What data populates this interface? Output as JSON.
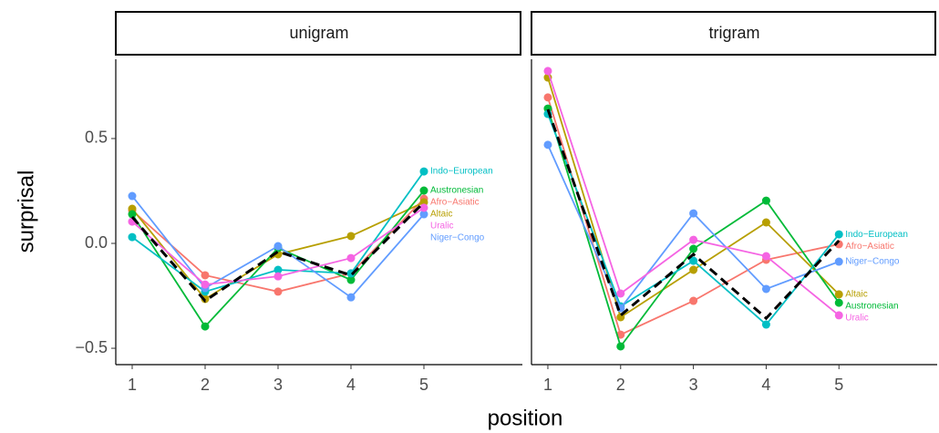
{
  "x_label": "position",
  "y_label": "surprisal",
  "chart_data": [
    {
      "type": "line",
      "title": "unigram",
      "x": [
        1,
        2,
        3,
        4,
        5
      ],
      "xlim": [
        0.775,
        6.35
      ],
      "ylim": [
        -0.578,
        0.878
      ],
      "xticks": [
        1,
        2,
        3,
        4,
        5
      ],
      "yticks": [
        {
          "value": -0.5,
          "label": "−0.5"
        },
        {
          "value": 0,
          "label": "0.0"
        },
        0.5
      ],
      "series": [
        {
          "name": "Afro−Asiatic",
          "color": "#F8766D",
          "values": [
            0.157,
            -0.152,
            -0.23,
            -0.143,
            0.213
          ]
        },
        {
          "name": "Altaic",
          "color": "#B79F00",
          "values": [
            0.165,
            -0.265,
            -0.052,
            0.035,
            0.196
          ]
        },
        {
          "name": "Austronesian",
          "color": "#00BA38",
          "values": [
            0.139,
            -0.396,
            -0.022,
            -0.174,
            0.252
          ]
        },
        {
          "name": "Indo−European",
          "color": "#00BFC4",
          "values": [
            0.03,
            -0.23,
            -0.126,
            -0.143,
            0.343
          ]
        },
        {
          "name": "Niger−Congo",
          "color": "#619CFF",
          "values": [
            0.226,
            -0.213,
            -0.013,
            -0.257,
            0.139
          ]
        },
        {
          "name": "Uralic",
          "color": "#F564E3",
          "values": [
            0.104,
            -0.196,
            -0.157,
            -0.07,
            0.17
          ]
        },
        {
          "color": "#000000",
          "dash": true,
          "values": [
            0.126,
            -0.274,
            -0.039,
            -0.152,
            0.196
          ]
        }
      ]
    },
    {
      "type": "line",
      "title": "trigram",
      "x": [
        1,
        2,
        3,
        4,
        5
      ],
      "xlim": [
        0.775,
        6.35
      ],
      "ylim": [
        -0.578,
        0.878
      ],
      "xticks": [
        1,
        2,
        3,
        4,
        5
      ],
      "series": [
        {
          "name": "Afro−Asiatic",
          "color": "#F8766D",
          "values": [
            0.696,
            -0.435,
            -0.274,
            -0.078,
            -0.004
          ]
        },
        {
          "name": "Altaic",
          "color": "#B79F00",
          "values": [
            0.791,
            -0.352,
            -0.126,
            0.1,
            -0.243
          ]
        },
        {
          "name": "Austronesian",
          "color": "#00BA38",
          "values": [
            0.643,
            -0.491,
            -0.026,
            0.204,
            -0.283
          ]
        },
        {
          "name": "Indo−European",
          "color": "#00BFC4",
          "values": [
            0.617,
            -0.3,
            -0.083,
            -0.387,
            0.043
          ]
        },
        {
          "name": "Niger−Congo",
          "color": "#619CFF",
          "values": [
            0.47,
            -0.309,
            0.143,
            -0.217,
            -0.087
          ]
        },
        {
          "name": "Uralic",
          "color": "#F564E3",
          "values": [
            0.822,
            -0.239,
            0.017,
            -0.061,
            -0.343
          ]
        },
        {
          "color": "#000000",
          "dash": true,
          "values": [
            0.639,
            -0.343,
            -0.052,
            -0.357,
            0.013
          ]
        }
      ]
    }
  ]
}
